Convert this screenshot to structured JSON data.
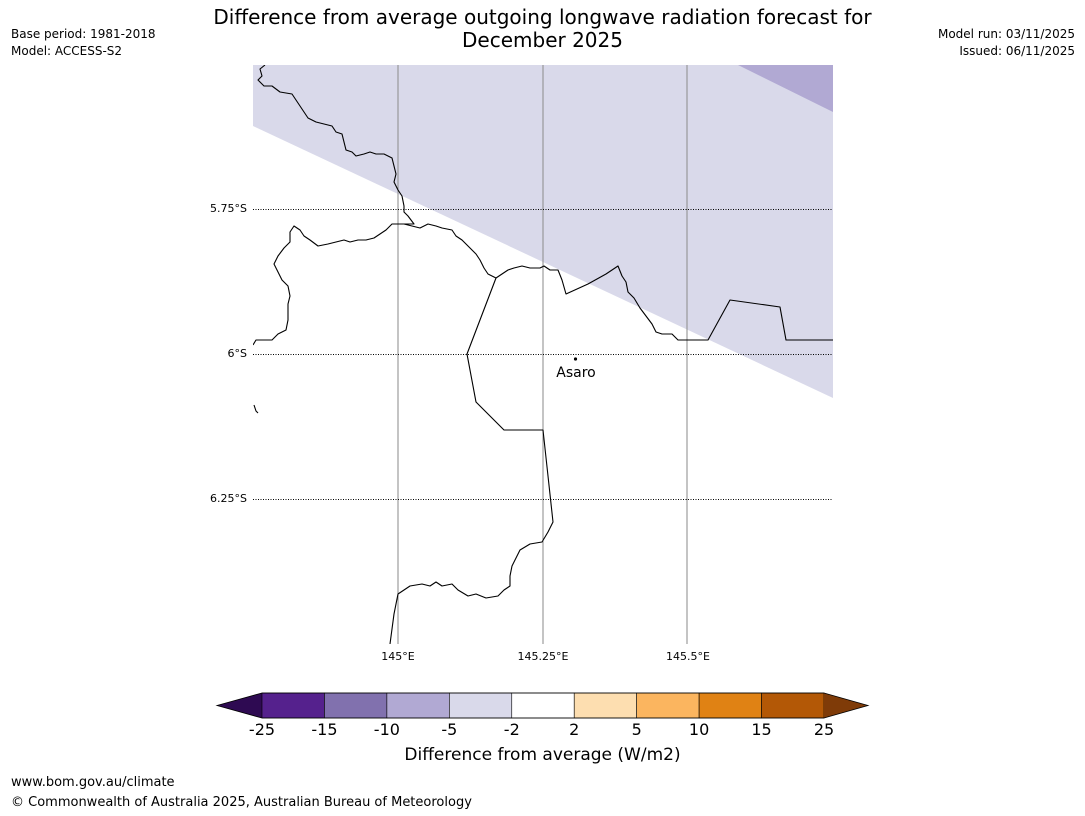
{
  "header": {
    "title_line1": "Difference from average outgoing longwave radiation forecast for",
    "title_line2": "December 2025",
    "base_period": "Base period: 1981-2018",
    "model": "Model: ACCESS-S2",
    "model_run": "Model run: 03/11/2025",
    "issued": "Issued: 06/11/2025"
  },
  "map": {
    "lat_labels": [
      "5.75°S",
      "6°S",
      "6.25°S"
    ],
    "lon_labels": [
      "145°E",
      "145.25°E",
      "145.5°E"
    ],
    "place": {
      "name": "Asaro"
    },
    "shading": [
      {
        "category": "-5 to -2",
        "color": "#d9d9ea"
      },
      {
        "category": "-10 to -5",
        "color": "#b1a9d3"
      }
    ]
  },
  "colorbar": {
    "ticks": [
      "-25",
      "-15",
      "-10",
      "-5",
      "-2",
      "2",
      "5",
      "10",
      "15",
      "25"
    ],
    "under_color": "#2e0a52",
    "over_color": "#7f3b08",
    "bins": [
      {
        "range": "-25 to -15",
        "color": "#55218d"
      },
      {
        "range": "-15 to -10",
        "color": "#8171ae"
      },
      {
        "range": "-10 to -5",
        "color": "#b1a9d3"
      },
      {
        "range": "-5 to -2",
        "color": "#d9d9ea"
      },
      {
        "range": "-2 to 2",
        "color": "#ffffff"
      },
      {
        "range": "2 to 5",
        "color": "#fddeb0"
      },
      {
        "range": "5 to 10",
        "color": "#fbb55f"
      },
      {
        "range": "10 to 15",
        "color": "#e08214"
      },
      {
        "range": "15 to 25",
        "color": "#b35806"
      }
    ],
    "label": "Difference from average (W/m2)"
  },
  "footer": {
    "url": "www.bom.gov.au/climate",
    "copyright": "© Commonwealth of Australia 2025, Australian Bureau of Meteorology"
  }
}
